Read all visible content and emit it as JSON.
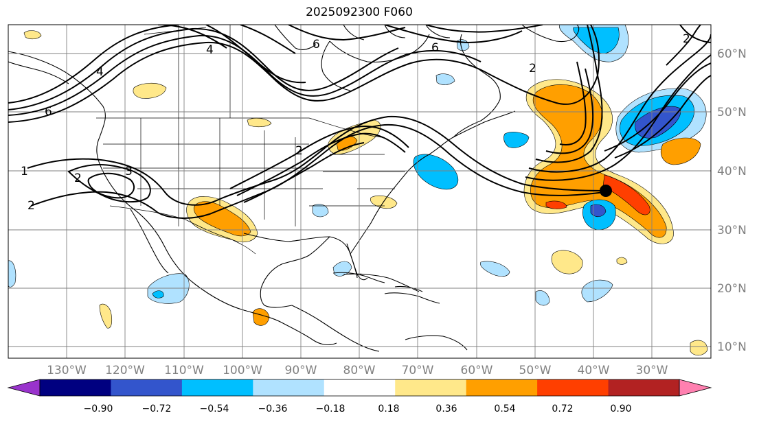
{
  "title": "2025092300 F060",
  "map": {
    "latitude_labels": [
      "60°N",
      "50°N",
      "40°N",
      "30°N",
      "20°N",
      "10°N"
    ],
    "longitude_labels": [
      "130°W",
      "120°W",
      "110°W",
      "100°W",
      "90°W",
      "80°W",
      "70°W",
      "60°W",
      "50°W",
      "40°W",
      "30°W"
    ],
    "contour_labels": [
      "1",
      "2",
      "2",
      "3",
      "2",
      "6",
      "6",
      "4",
      "6",
      "2",
      "4",
      "2"
    ],
    "marker": "black-dot"
  },
  "colorbar": {
    "tick_labels": [
      "−0.90",
      "−0.72",
      "−0.54",
      "−0.36",
      "−0.18",
      "0.18",
      "0.36",
      "0.54",
      "0.72",
      "0.90"
    ],
    "colors": [
      "#9933cc",
      "#000080",
      "#3355cc",
      "#00bfff",
      "#b0e2ff",
      "#ffffff",
      "#ffe88a",
      "#ff9f00",
      "#ff3f00",
      "#b22222",
      "#ff80b0"
    ]
  }
}
